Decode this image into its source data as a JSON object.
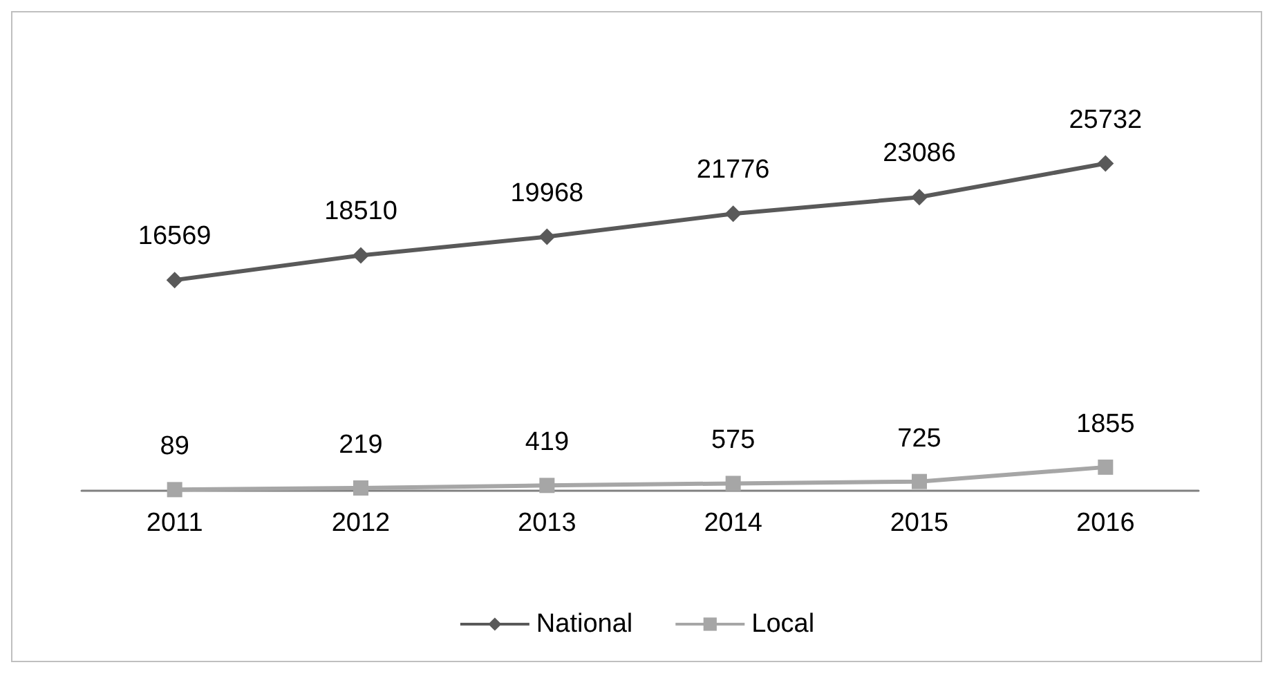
{
  "chart_data": {
    "type": "line",
    "categories": [
      "2011",
      "2012",
      "2013",
      "2014",
      "2015",
      "2016"
    ],
    "series": [
      {
        "name": "National",
        "color": "#595959",
        "marker": "diamond",
        "values": [
          16569,
          18510,
          19968,
          21776,
          23086,
          25732
        ]
      },
      {
        "name": "Local",
        "color": "#a6a6a6",
        "marker": "square",
        "values": [
          89,
          219,
          419,
          575,
          725,
          1855
        ]
      }
    ],
    "data_labels": true,
    "legend": "bottom",
    "grid": false
  }
}
